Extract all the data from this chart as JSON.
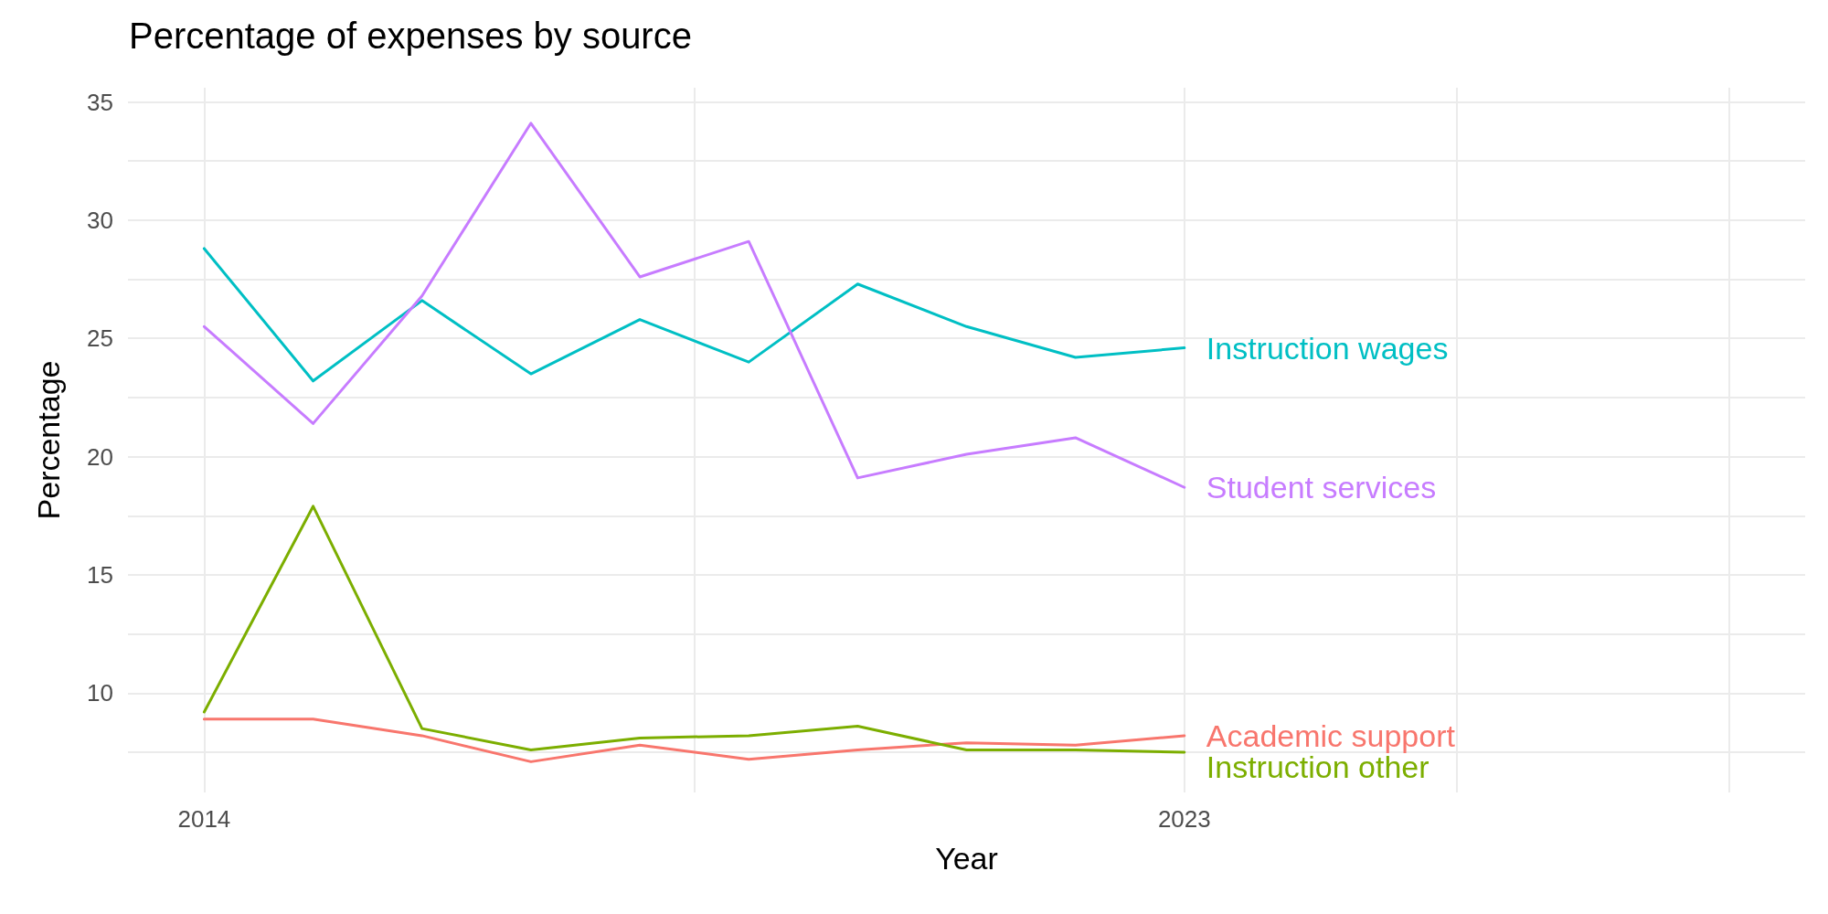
{
  "chart_data": {
    "type": "line",
    "title": "Percentage of expenses by source",
    "xlabel": "Year",
    "ylabel": "Percentage",
    "x": [
      2014,
      2015,
      2016,
      2017,
      2018,
      2019,
      2020,
      2021,
      2022,
      2023
    ],
    "series": [
      {
        "name": "Academic support",
        "color": "#f8766d",
        "values": [
          8.9,
          8.9,
          8.2,
          7.1,
          7.8,
          7.2,
          7.6,
          7.9,
          7.8,
          8.2
        ]
      },
      {
        "name": "Instruction other",
        "color": "#7cae00",
        "values": [
          9.2,
          17.9,
          8.5,
          7.6,
          8.1,
          8.2,
          8.6,
          7.6,
          7.6,
          7.5
        ]
      },
      {
        "name": "Instruction wages",
        "color": "#00bfc4",
        "values": [
          28.8,
          23.2,
          26.6,
          23.5,
          25.8,
          24.0,
          27.3,
          25.5,
          24.2,
          24.6
        ]
      },
      {
        "name": "Student services",
        "color": "#c77cff",
        "values": [
          25.5,
          21.4,
          26.8,
          34.1,
          27.6,
          29.1,
          19.1,
          20.1,
          20.8,
          18.7
        ]
      }
    ],
    "xlim": [
      2013.3,
      2028.7
    ],
    "xticks": [
      2014,
      {
        "value": 2018.5,
        "label": null
      },
      2023,
      {
        "value": 2025.5,
        "label": null
      },
      {
        "value": 2028,
        "label": null
      }
    ],
    "ylim": [
      5.8,
      35.6
    ],
    "yticks": [
      {
        "value": 7.5,
        "label": null
      },
      10,
      {
        "value": 12.5,
        "label": null
      },
      15,
      {
        "value": 17.5,
        "label": null
      },
      20,
      {
        "value": 22.5,
        "label": null
      },
      25,
      {
        "value": 27.5,
        "label": null
      },
      30,
      {
        "value": 32.5,
        "label": null
      },
      35
    ],
    "grid": true,
    "legend": false,
    "marker": "none",
    "line_style": "solid"
  }
}
